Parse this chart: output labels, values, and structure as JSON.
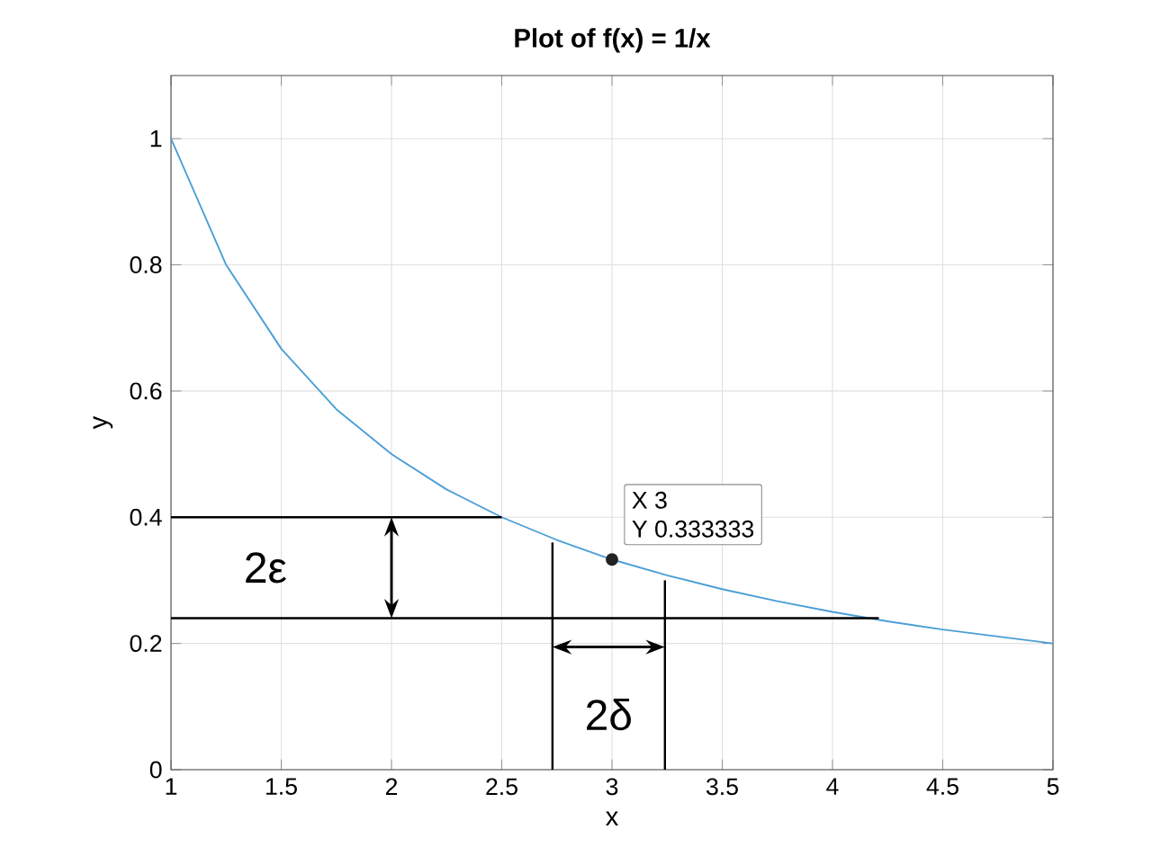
{
  "chart_data": {
    "type": "line",
    "title": "Plot of f(x) = 1/x",
    "xlabel": "x",
    "ylabel": "y",
    "xlim": [
      1,
      5
    ],
    "ylim": [
      0,
      1.1
    ],
    "xticks": [
      1,
      1.5,
      2,
      2.5,
      3,
      3.5,
      4,
      4.5,
      5
    ],
    "yticks": [
      0,
      0.2,
      0.4,
      0.6,
      0.8,
      1
    ],
    "grid": true,
    "series": [
      {
        "color": "#4a9fd6",
        "x": [
          1,
          1.25,
          1.5,
          1.75,
          2,
          2.25,
          2.5,
          2.75,
          3,
          3.25,
          3.5,
          3.75,
          4,
          4.25,
          4.5,
          4.75,
          5
        ],
        "values": [
          1,
          0.8,
          0.667,
          0.571,
          0.5,
          0.444,
          0.4,
          0.364,
          0.333,
          0.308,
          0.286,
          0.267,
          0.25,
          0.235,
          0.222,
          0.211,
          0.2
        ]
      },
      {
        "color": "#000000",
        "x": [
          1,
          2.5
        ],
        "values": [
          0.4,
          0.4
        ]
      },
      {
        "color": "#000000",
        "x": [
          1,
          4.21
        ],
        "values": [
          0.24,
          0.24
        ]
      },
      {
        "color": "#000000",
        "x": [
          2.73,
          2.73
        ],
        "values": [
          0,
          0.36
        ]
      },
      {
        "color": "#000000",
        "x": [
          3.24,
          3.24
        ],
        "values": [
          0,
          0.3
        ]
      },
      {
        "type": "scatter",
        "marker": "circle",
        "color": "#222222",
        "x": [
          3
        ],
        "values": [
          0.333
        ]
      }
    ],
    "annotations": [
      {
        "text": "X 3",
        "x": 3,
        "y": 0.333
      },
      "Y 0.333333",
      "2ε",
      "2δ"
    ]
  }
}
